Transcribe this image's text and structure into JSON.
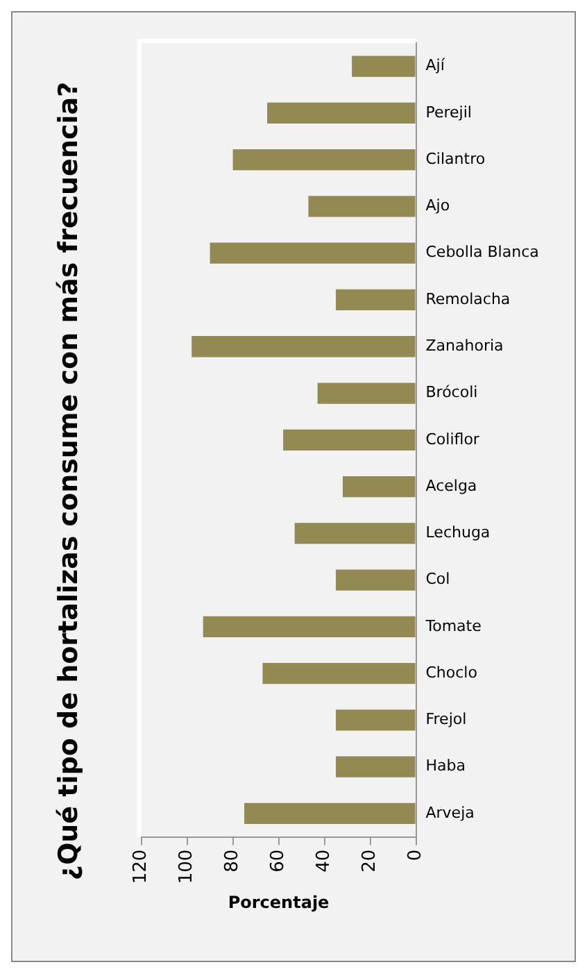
{
  "chart_data": {
    "type": "bar",
    "orientation": "horizontal",
    "title": "¿Qué tipo de hortalizas consume con más frecuencia?",
    "xlabel": "Porcentaje",
    "categories": [
      "Ají",
      "Perejil",
      "Cilantro",
      "Ajo",
      "Cebolla Blanca",
      "Remolacha",
      "Zanahoria",
      "Brócoli",
      "Coliflor",
      "Acelga",
      "Lechuga",
      "Col",
      "Tomate",
      "Choclo",
      "Frejol",
      "Haba",
      "Arveja"
    ],
    "values": [
      28,
      65,
      80,
      47,
      90,
      35,
      98,
      43,
      58,
      32,
      53,
      35,
      93,
      67,
      35,
      35,
      75
    ],
    "color": "#938953",
    "xlim": [
      120,
      0
    ],
    "xticks": [
      0,
      20,
      40,
      60,
      80,
      100,
      120
    ],
    "grid": false,
    "legend": false
  }
}
